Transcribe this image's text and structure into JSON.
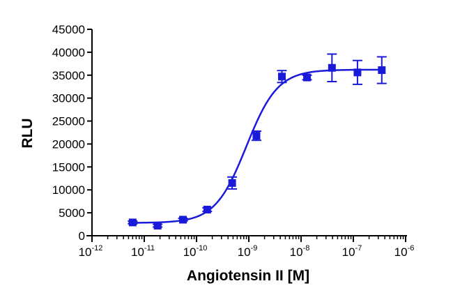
{
  "chart_data": {
    "type": "scatter",
    "xlabel": "Angiotensin II [M]",
    "ylabel": "RLU",
    "x_scale": "log",
    "xlim": [
      1e-12,
      1e-06
    ],
    "ylim": [
      0,
      45000
    ],
    "x_ticks": [
      {
        "base": "10",
        "exp": "-12",
        "value": 1e-12
      },
      {
        "base": "10",
        "exp": "-11",
        "value": 1e-11
      },
      {
        "base": "10",
        "exp": "-10",
        "value": 1e-10
      },
      {
        "base": "10",
        "exp": "-9",
        "value": 1e-09
      },
      {
        "base": "10",
        "exp": "-8",
        "value": 1e-08
      },
      {
        "base": "10",
        "exp": "-7",
        "value": 1e-07
      },
      {
        "base": "10",
        "exp": "-6",
        "value": 1e-06
      }
    ],
    "y_ticks": [
      0,
      5000,
      10000,
      15000,
      20000,
      25000,
      30000,
      35000,
      40000,
      45000
    ],
    "series": [
      {
        "marker": "square",
        "color": "#1a1adb",
        "points": [
          {
            "x": 6e-12,
            "y": 2900,
            "err": 300
          },
          {
            "x": 1.8e-11,
            "y": 2200,
            "err": 300
          },
          {
            "x": 5.5e-11,
            "y": 3500,
            "err": 300
          },
          {
            "x": 1.6e-10,
            "y": 5700,
            "err": 400
          },
          {
            "x": 4.8e-10,
            "y": 11500,
            "err": 1300
          },
          {
            "x": 1.4e-09,
            "y": 21800,
            "err": 1000
          },
          {
            "x": 4.3e-09,
            "y": 34700,
            "err": 1300
          },
          {
            "x": 1.3e-08,
            "y": 34500,
            "err": 500
          },
          {
            "x": 3.9e-08,
            "y": 36600,
            "err": 3000
          },
          {
            "x": 1.2e-07,
            "y": 35600,
            "err": 2600
          },
          {
            "x": 3.5e-07,
            "y": 36100,
            "err": 2900
          }
        ]
      }
    ],
    "fit": {
      "model": "four-parameter logistic",
      "bottom": 2800,
      "top": 36200,
      "ec50": 9e-10,
      "hill": 1.45,
      "x_range": [
        5e-12,
        3.5e-07
      ],
      "color": "#1a1adb"
    }
  }
}
